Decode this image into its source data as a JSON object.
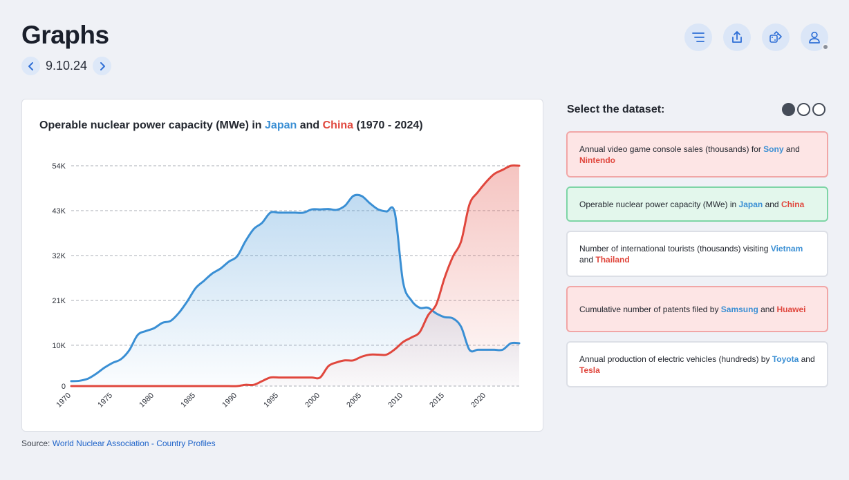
{
  "header": {
    "title": "Graphs",
    "date": "9.10.24"
  },
  "icons": {
    "prev": "chevron-left-icon",
    "next": "chevron-right-icon",
    "toolbar": [
      "menu-lines-icon",
      "share-icon",
      "dice-icon",
      "user-icon"
    ]
  },
  "chart_title": {
    "prefix": "Operable nuclear power capacity (MWe) in ",
    "series1": "Japan",
    "mid": " and ",
    "series2": "China",
    "suffix": " (1970 - 2024)"
  },
  "chart_data": {
    "type": "area",
    "title": "Operable nuclear power capacity (MWe) in Japan and China (1970 - 2024)",
    "xlabel": "",
    "ylabel": "",
    "xlim": [
      1970,
      2024
    ],
    "ylim": [
      0,
      54000
    ],
    "yticks": [
      0,
      10000,
      21000,
      32000,
      43000,
      54000
    ],
    "ytick_labels": [
      "0",
      "10K",
      "21K",
      "32K",
      "43K",
      "54K"
    ],
    "xticks": [
      1970,
      1975,
      1980,
      1985,
      1990,
      1995,
      2000,
      2005,
      2010,
      2015,
      2020
    ],
    "grid": true,
    "colors": {
      "Japan": "#3a8fd4",
      "China": "#e0473d"
    },
    "series": [
      {
        "name": "Japan",
        "x": [
          1970,
          1971,
          1972,
          1973,
          1974,
          1975,
          1976,
          1977,
          1978,
          1979,
          1980,
          1981,
          1982,
          1983,
          1984,
          1985,
          1986,
          1987,
          1988,
          1989,
          1990,
          1991,
          1992,
          1993,
          1994,
          1995,
          1996,
          1997,
          1998,
          1999,
          2000,
          2001,
          2002,
          2003,
          2004,
          2005,
          2006,
          2007,
          2008,
          2009,
          2010,
          2011,
          2012,
          2013,
          2014,
          2015,
          2016,
          2017,
          2018,
          2019,
          2020,
          2021,
          2022,
          2023,
          2024
        ],
        "values": [
          1200,
          1300,
          1800,
          3000,
          4500,
          5700,
          6600,
          8800,
          12500,
          13500,
          14200,
          15500,
          16000,
          18000,
          20800,
          24000,
          25800,
          27600,
          28800,
          30500,
          31800,
          35500,
          38500,
          40000,
          42500,
          42500,
          42500,
          42500,
          42500,
          43300,
          43300,
          43400,
          43200,
          44200,
          46600,
          46600,
          44800,
          43300,
          42800,
          42500,
          25500,
          21000,
          19200,
          19200,
          17800,
          16900,
          16600,
          14500,
          8900,
          8900,
          8900,
          8900,
          8900,
          10500,
          10500
        ]
      },
      {
        "name": "China",
        "x": [
          1970,
          1971,
          1972,
          1973,
          1974,
          1975,
          1976,
          1977,
          1978,
          1979,
          1980,
          1981,
          1982,
          1983,
          1984,
          1985,
          1986,
          1987,
          1988,
          1989,
          1990,
          1991,
          1992,
          1993,
          1994,
          1995,
          1996,
          1997,
          1998,
          1999,
          2000,
          2001,
          2002,
          2003,
          2004,
          2005,
          2006,
          2007,
          2008,
          2009,
          2010,
          2011,
          2012,
          2013,
          2014,
          2015,
          2016,
          2017,
          2018,
          2019,
          2020,
          2021,
          2022,
          2023,
          2024
        ],
        "values": [
          0,
          0,
          0,
          0,
          0,
          0,
          0,
          0,
          0,
          0,
          0,
          0,
          0,
          0,
          0,
          0,
          0,
          0,
          0,
          0,
          0,
          300,
          300,
          1200,
          2100,
          2100,
          2100,
          2100,
          2100,
          2100,
          2100,
          4900,
          5800,
          6300,
          6300,
          7200,
          7700,
          7700,
          7700,
          9000,
          10800,
          11900,
          13200,
          17300,
          20000,
          26500,
          31700,
          35500,
          44500,
          47500,
          50000,
          52000,
          53000,
          54000,
          54000
        ]
      }
    ]
  },
  "source": {
    "label": "Source: ",
    "link": "World Nuclear Association - Country Profiles"
  },
  "sidebar": {
    "heading": "Select the dataset:",
    "options": [
      {
        "prefix": "Annual video game console sales (thousands) for ",
        "a": "Sony",
        "mid": " and ",
        "b": "Nintendo",
        "suffix": ""
      },
      {
        "prefix": "Operable nuclear power capacity (MWe) in ",
        "a": "Japan",
        "mid": " and ",
        "b": "China",
        "suffix": ""
      },
      {
        "prefix": "Number of international tourists (thousands) visiting ",
        "a": "Vietnam",
        "mid": " and ",
        "b": "Thailand",
        "suffix": ""
      },
      {
        "prefix": "Cumulative number of patents filed by ",
        "a": "Samsung",
        "mid": " and ",
        "b": "Huawei",
        "suffix": ""
      },
      {
        "prefix": "Annual production of electric vehicles (hundreds) by ",
        "a": "Toyota",
        "mid": " and ",
        "b": "Tesla",
        "suffix": ""
      }
    ]
  }
}
